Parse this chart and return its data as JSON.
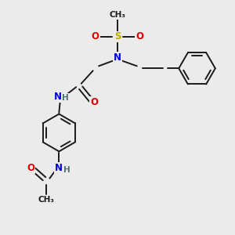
{
  "bg_color": "#ebebeb",
  "bond_color": "#1a1a1a",
  "atom_colors": {
    "N": "#0000dd",
    "O": "#dd0000",
    "S": "#bbaa00",
    "C": "#1a1a1a",
    "H": "#4a7070"
  },
  "font_size_atom": 8.5,
  "font_size_small": 7.5,
  "lw": 1.4
}
